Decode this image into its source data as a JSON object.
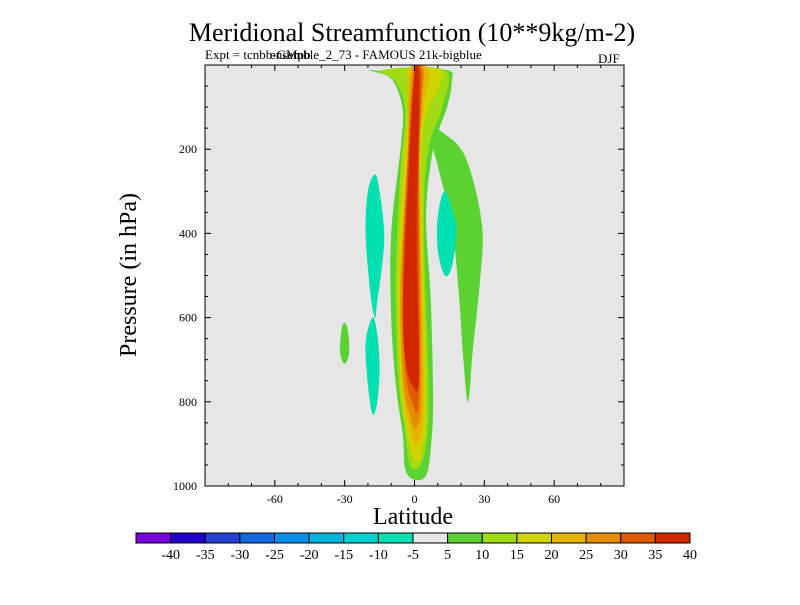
{
  "chart_data": {
    "type": "contour",
    "title": "Meridional Streamfunction (10**9kg/m-2)",
    "subtitle_left": "Expt = tcnbb-GMpb",
    "subtitle_overlap": "ensemble_2_73 - FAMOUS 21k-bigblue",
    "season": "DJF",
    "xlabel": "Latitude",
    "ylabel": "Pressure (in hPa)",
    "xlim": [
      -90,
      90
    ],
    "ylim": [
      1000,
      0
    ],
    "xticks": [
      -60,
      -30,
      0,
      30,
      60
    ],
    "yticks": [
      200,
      400,
      600,
      800,
      1000
    ],
    "background_color": "#e6e6e6",
    "colorbar": {
      "levels": [
        -40,
        -35,
        -30,
        -25,
        -20,
        -15,
        -10,
        -5,
        5,
        10,
        15,
        20,
        25,
        30,
        35,
        40
      ],
      "colors": [
        "#7a00dc",
        "#2200cc",
        "#2640d6",
        "#1468e0",
        "#0a90e8",
        "#00b4dc",
        "#00d0d0",
        "#00e0b0",
        "#e6e6e6",
        "#5ad232",
        "#a0dc14",
        "#d2d200",
        "#e6b400",
        "#e68c00",
        "#e05a00",
        "#d22800"
      ]
    },
    "contours": [
      {
        "name": "positive-5",
        "min": 5,
        "color": "#5ad232",
        "pts": [
          [
            -20,
            12
          ],
          [
            -12,
            25
          ],
          [
            -8,
            50
          ],
          [
            -5,
            110
          ],
          [
            -6,
            200
          ],
          [
            -10,
            400
          ],
          [
            -10,
            600
          ],
          [
            -8,
            760
          ],
          [
            -5,
            880
          ],
          [
            -4,
            960
          ],
          [
            0,
            985
          ],
          [
            5,
            975
          ],
          [
            7,
            910
          ],
          [
            8,
            800
          ],
          [
            7,
            560
          ],
          [
            5,
            360
          ],
          [
            8,
            200
          ],
          [
            14,
            100
          ],
          [
            16,
            40
          ],
          [
            14,
            12
          ],
          [
            -7,
            12
          ],
          [
            -8,
            40
          ],
          [
            -10,
            20
          ]
        ]
      },
      {
        "name": "positive-5-outer-lobe",
        "min": 5,
        "color": "#5ad232",
        "pts": [
          [
            6,
            150
          ],
          [
            12,
            160
          ],
          [
            22,
            220
          ],
          [
            29,
            380
          ],
          [
            28,
            520
          ],
          [
            25,
            680
          ],
          [
            23,
            800
          ],
          [
            21,
            700
          ],
          [
            19,
            540
          ],
          [
            16,
            380
          ],
          [
            10,
            240
          ]
        ]
      },
      {
        "name": "positive-10",
        "min": 10,
        "color": "#a0dc14",
        "pts": [
          [
            -14,
            12
          ],
          [
            -8,
            40
          ],
          [
            -4,
            110
          ],
          [
            -6,
            250
          ],
          [
            -8,
            500
          ],
          [
            -7,
            740
          ],
          [
            -4,
            870
          ],
          [
            -2,
            950
          ],
          [
            2,
            955
          ],
          [
            5,
            900
          ],
          [
            6,
            760
          ],
          [
            4,
            380
          ],
          [
            6,
            200
          ],
          [
            12,
            100
          ],
          [
            13,
            12
          ]
        ]
      },
      {
        "name": "positive-15",
        "min": 15,
        "color": "#d2d200",
        "pts": [
          [
            -3,
            12
          ],
          [
            -2,
            60
          ],
          [
            -5,
            250
          ],
          [
            -7,
            520
          ],
          [
            -6,
            760
          ],
          [
            -3,
            880
          ],
          [
            0,
            940
          ],
          [
            3,
            920
          ],
          [
            5,
            780
          ],
          [
            3,
            260
          ],
          [
            5,
            120
          ],
          [
            10,
            60
          ],
          [
            11,
            12
          ]
        ]
      },
      {
        "name": "positive-20",
        "min": 20,
        "color": "#e6b400",
        "pts": [
          [
            -2,
            12
          ],
          [
            -3,
            200
          ],
          [
            -6,
            520
          ],
          [
            -5,
            760
          ],
          [
            -2,
            860
          ],
          [
            1,
            900
          ],
          [
            4,
            780
          ],
          [
            2,
            240
          ],
          [
            4,
            100
          ],
          [
            6,
            12
          ]
        ]
      },
      {
        "name": "positive-25",
        "min": 25,
        "color": "#e68c00",
        "pts": [
          [
            -1,
            12
          ],
          [
            -3,
            220
          ],
          [
            -6,
            520
          ],
          [
            -5,
            740
          ],
          [
            -2,
            830
          ],
          [
            1,
            860
          ],
          [
            3,
            760
          ],
          [
            2,
            260
          ],
          [
            3,
            90
          ],
          [
            4,
            12
          ]
        ]
      },
      {
        "name": "positive-30",
        "min": 30,
        "color": "#e05a00",
        "pts": [
          [
            0,
            12
          ],
          [
            -3,
            240
          ],
          [
            -5,
            520
          ],
          [
            -4,
            720
          ],
          [
            -1,
            800
          ],
          [
            2,
            780
          ],
          [
            2,
            260
          ],
          [
            3,
            80
          ],
          [
            3,
            12
          ]
        ]
      },
      {
        "name": "positive-35",
        "min": 35,
        "color": "#d22800",
        "pts": [
          [
            0,
            12
          ],
          [
            -3,
            300
          ],
          [
            -5,
            560
          ],
          [
            -4,
            700
          ],
          [
            -1,
            760
          ],
          [
            2,
            740
          ],
          [
            1,
            400
          ],
          [
            2,
            100
          ],
          [
            2,
            12
          ]
        ]
      },
      {
        "name": "negative-5-left-lobe",
        "min": -5,
        "color": "#00e0b0",
        "pts": [
          [
            -17,
            260
          ],
          [
            -15,
            300
          ],
          [
            -13,
            400
          ],
          [
            -14,
            480
          ],
          [
            -16,
            560
          ],
          [
            -17,
            600
          ],
          [
            -19,
            540
          ],
          [
            -21,
            400
          ],
          [
            -20,
            300
          ]
        ]
      },
      {
        "name": "negative-5-lower-lobe",
        "min": -5,
        "color": "#00e0b0",
        "pts": [
          [
            -18,
            600
          ],
          [
            -16,
            640
          ],
          [
            -15,
            720
          ],
          [
            -16,
            800
          ],
          [
            -18,
            830
          ],
          [
            -20,
            760
          ],
          [
            -21,
            660
          ]
        ]
      },
      {
        "name": "negative-5-right-lobe",
        "min": -5,
        "color": "#00e0b0",
        "pts": [
          [
            13,
            300
          ],
          [
            17,
            360
          ],
          [
            18,
            400
          ],
          [
            16,
            480
          ],
          [
            13,
            500
          ],
          [
            10,
            440
          ],
          [
            10,
            360
          ]
        ]
      },
      {
        "name": "positive-5-small-blob",
        "min": 5,
        "color": "#5ad232",
        "pts": [
          [
            -31,
            620
          ],
          [
            -29,
            620
          ],
          [
            -28,
            680
          ],
          [
            -30,
            710
          ],
          [
            -32,
            680
          ]
        ]
      }
    ]
  }
}
